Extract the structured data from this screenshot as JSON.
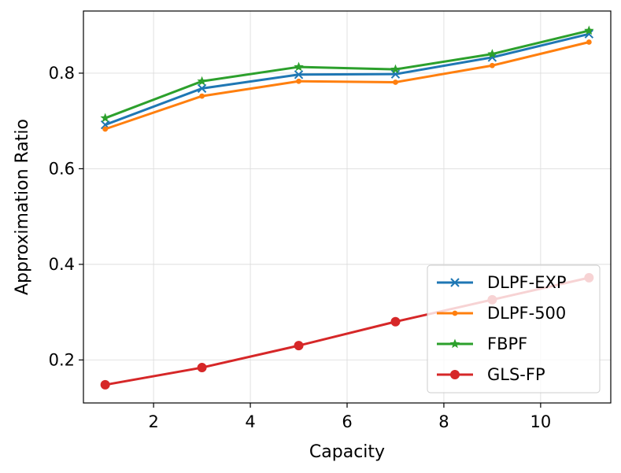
{
  "chart_data": {
    "type": "line",
    "title": "",
    "xlabel": "Capacity",
    "ylabel": "Approximation Ratio",
    "xlim": [
      0.55,
      11.45
    ],
    "ylim": [
      0.11,
      0.93
    ],
    "xticks": [
      2,
      4,
      6,
      8,
      10
    ],
    "yticks": [
      0.2,
      0.4,
      0.6,
      0.8
    ],
    "xtick_labels": [
      "2",
      "4",
      "6",
      "8",
      "10"
    ],
    "ytick_labels": [
      "0.2",
      "0.4",
      "0.6",
      "0.8"
    ],
    "grid": true,
    "legend_position": "lower-right",
    "x": [
      1,
      3,
      5,
      7,
      9,
      11
    ],
    "series": [
      {
        "name": "DLPF-EXP",
        "color": "#1f77b4",
        "marker": "x",
        "values": [
          0.692,
          0.768,
          0.797,
          0.798,
          0.833,
          0.882
        ]
      },
      {
        "name": "DLPF-500",
        "color": "#ff7f0e",
        "marker": "dot",
        "values": [
          0.683,
          0.752,
          0.783,
          0.781,
          0.816,
          0.865
        ]
      },
      {
        "name": "FBPF",
        "color": "#2ca02c",
        "marker": "star",
        "values": [
          0.706,
          0.783,
          0.813,
          0.808,
          0.84,
          0.889
        ]
      },
      {
        "name": "GLS-FP",
        "color": "#d62728",
        "marker": "circle",
        "values": [
          0.148,
          0.184,
          0.23,
          0.28,
          0.326,
          0.372
        ]
      }
    ]
  }
}
